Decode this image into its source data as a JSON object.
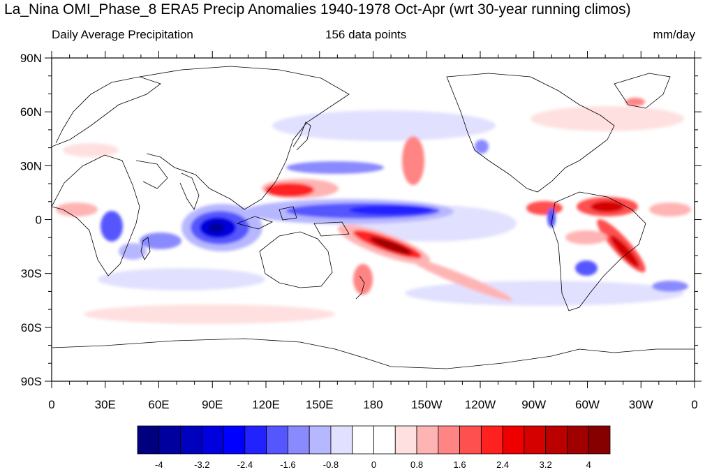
{
  "figure": {
    "title": "La_Nina OMI_Phase_8 ERA5 Precip Anomalies 1940-1978 Oct-Apr (wrt 30-year running climos)",
    "left_subtitle": "Daily Average Precipitation",
    "center_subtitle": "156 data points",
    "right_subtitle": "mm/day"
  },
  "axes": {
    "lat_ticks": [
      "90N",
      "60N",
      "30N",
      "0",
      "30S",
      "60S",
      "90S"
    ],
    "lon_ticks": [
      "0",
      "30E",
      "60E",
      "90E",
      "120E",
      "150E",
      "180",
      "150W",
      "120W",
      "90W",
      "60W",
      "30W",
      "0"
    ]
  },
  "colorbar": {
    "labels": [
      "-4",
      "-3.2",
      "-2.4",
      "-1.6",
      "-0.8",
      "0",
      "0.8",
      "1.6",
      "2.4",
      "3.2",
      "4"
    ],
    "colors": [
      "#00007f",
      "#00009f",
      "#0000bf",
      "#0000df",
      "#0000ff",
      "#2222ff",
      "#5656ff",
      "#8a8aff",
      "#b7b7ff",
      "#e1e1ff",
      "#ffffff",
      "#ffffff",
      "#ffe0e0",
      "#ffb4b4",
      "#ff8484",
      "#ff5050",
      "#ff2020",
      "#ef0000",
      "#d50000",
      "#bb0000",
      "#a10000",
      "#870000"
    ]
  },
  "anomaly_features": [
    {
      "region": "Maritime Continent / Indian Ocean",
      "sign": "negative",
      "level": -3.6
    },
    {
      "region": "Equatorial central Pacific",
      "sign": "negative",
      "level": -2.4
    },
    {
      "region": "South Pacific Convergence Zone",
      "sign": "positive",
      "level": 3.6
    },
    {
      "region": "Philippine Sea",
      "sign": "positive",
      "level": 3.2
    },
    {
      "region": "Northern South America",
      "sign": "positive",
      "level": 2.8
    },
    {
      "region": "Southern Brazil",
      "sign": "positive",
      "level": 2.8
    },
    {
      "region": "Southeastern South America",
      "sign": "negative",
      "level": -2.0
    },
    {
      "region": "Southern Africa / Madagascar",
      "sign": "negative",
      "level": -2.0
    }
  ]
}
